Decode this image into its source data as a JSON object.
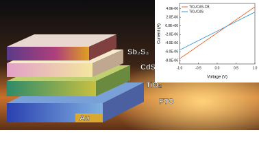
{
  "chart_data": {
    "type": "line",
    "x": [
      -1.0,
      -0.5,
      0.0,
      0.5,
      1.0
    ],
    "xlim": [
      -1.0,
      1.0
    ],
    "xticks": [
      {
        "value": -1.0,
        "label": "-1.0"
      },
      {
        "value": -0.5,
        "label": "-0.5"
      },
      {
        "value": 0,
        "label": "0.0"
      },
      {
        "value": 0.5,
        "label": "0.5"
      },
      {
        "value": 1.0,
        "label": "1.0"
      }
    ],
    "ylim": [
      -8.8e-06,
      5.2e-06
    ],
    "yticks": [
      {
        "value": 4e-06,
        "label": "4.0E-06"
      },
      {
        "value": 2e-06,
        "label": "2.0E-06"
      },
      {
        "value": 0,
        "label": "0.0E+00"
      },
      {
        "value": -2e-06,
        "label": "-2.0E-06"
      },
      {
        "value": -4e-06,
        "label": "-4.0E-06"
      },
      {
        "value": -6e-06,
        "label": "-6.0E-06"
      },
      {
        "value": -8e-06,
        "label": "-8.0E-06"
      }
    ],
    "xlabel": "Voltage (V)",
    "ylabel": "Current (A)",
    "legend": "upper left",
    "series": [
      {
        "name": "TiO₂/CdS-CB",
        "color": "#e8642a",
        "values": [
          -7.6e-06,
          -4.6e-06,
          -1.6e-06,
          1.4e-06,
          4.4e-06
        ]
      },
      {
        "name": "TiO₂/CdS",
        "color": "#3a9ad9",
        "values": [
          -5.6e-06,
          -3.4e-06,
          -1.2e-06,
          1e-06,
          3.2e-06
        ]
      }
    ]
  },
  "device_labels": [
    "Sb₂S₃",
    "CdS:C",
    "TiO₂",
    "FTO",
    "Au"
  ]
}
